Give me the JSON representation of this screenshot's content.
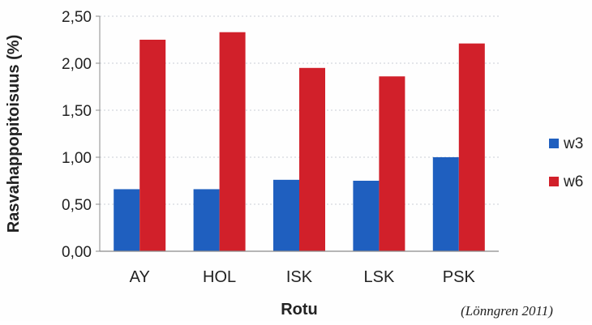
{
  "chart_data": {
    "type": "bar",
    "categories": [
      "AY",
      "HOL",
      "ISK",
      "LSK",
      "PSK"
    ],
    "series": [
      {
        "name": "w3",
        "values": [
          0.66,
          0.66,
          0.76,
          0.75,
          1.0
        ],
        "color": "#1f5fbf"
      },
      {
        "name": "w6",
        "values": [
          2.25,
          2.33,
          1.95,
          1.86,
          2.21
        ],
        "color": "#d1202a"
      }
    ],
    "title": "",
    "xlabel": "Rotu",
    "ylabel": "Rasvahappopitoisuus (%)",
    "ylim": [
      0,
      2.5
    ],
    "yticks": [
      "0,00",
      "0,50",
      "1,00",
      "1,50",
      "2,00",
      "2,50"
    ],
    "grid": true,
    "legend_position": "right"
  },
  "source_note": "(Lönngren 2011)"
}
